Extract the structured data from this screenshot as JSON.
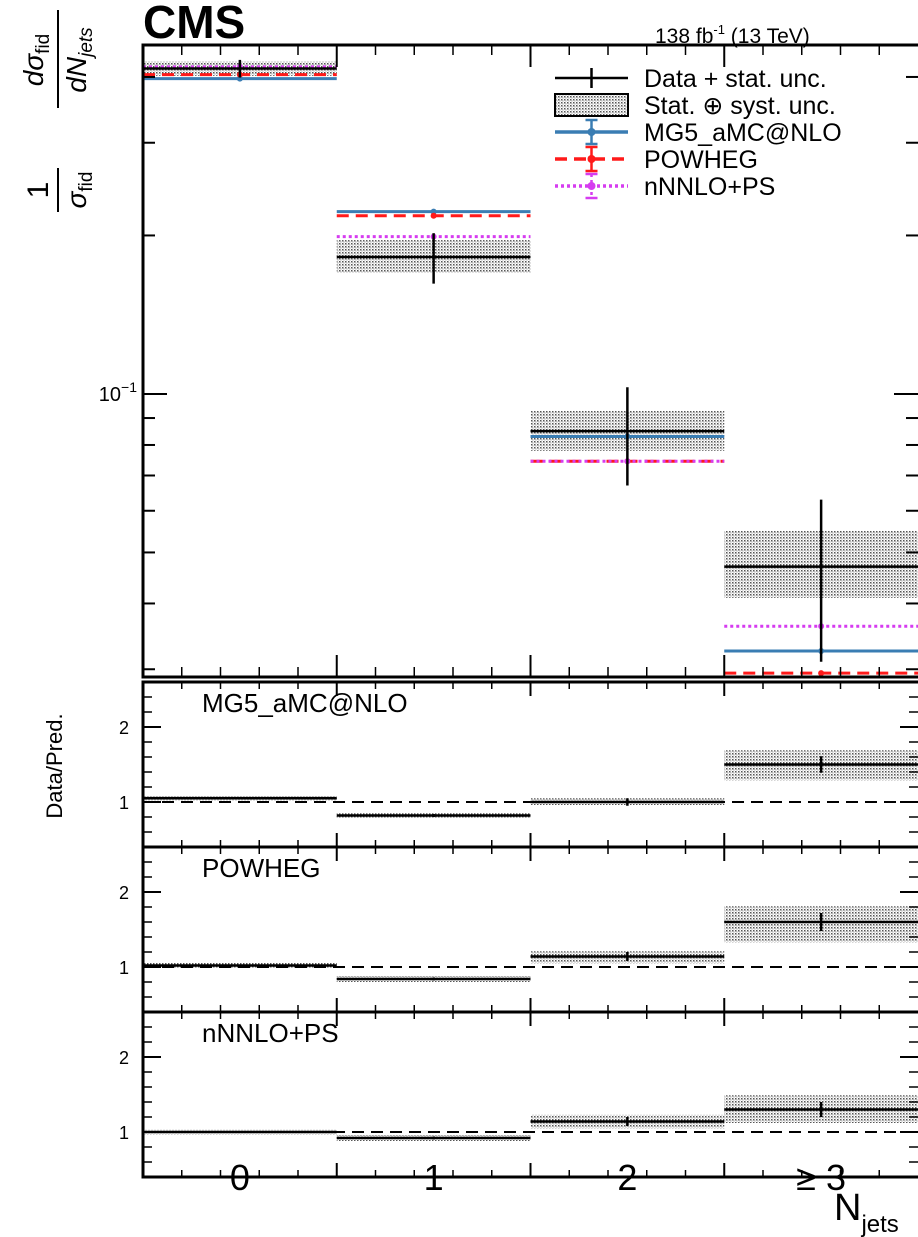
{
  "header": {
    "experiment": "CMS",
    "luminosity_main": "138 fb",
    "luminosity_sup": "-1",
    "energy": " (13 TeV)"
  },
  "legend": [
    {
      "label": "Data + stat. unc.",
      "style": "data"
    },
    {
      "label": "Stat. ⊕ syst. unc.",
      "style": "band"
    },
    {
      "label": "MG5_aMC@NLO",
      "style": "solid",
      "color": "#3a7db3"
    },
    {
      "label": "POWHEG",
      "style": "dashed",
      "color": "#ff1a1a"
    },
    {
      "label": "nNNLO+PS",
      "style": "dotted",
      "color": "#d63cf0"
    }
  ],
  "axis_labels": {
    "x_main": "N",
    "x_sub": "jets",
    "ratio_y": "Data/Pred."
  },
  "chart_data": {
    "type": "line",
    "categories": [
      "0",
      "1",
      "2",
      "≥ 3"
    ],
    "y_scale": "log",
    "ylim": [
      0.029,
      0.46
    ],
    "y_tick_label_base": "10",
    "y_tick_label_exp": "−1",
    "data": {
      "values": [
        0.415,
        0.182,
        0.085,
        0.047
      ],
      "stat_unc": [
        0.004,
        0.005,
        0.0045,
        0.004
      ],
      "total_unc_low": [
        0.402,
        0.17,
        0.078,
        0.041
      ],
      "total_unc_high": [
        0.428,
        0.196,
        0.093,
        0.055
      ]
    },
    "series": [
      {
        "name": "MG5_aMC@NLO",
        "color": "#3a7db3",
        "values": [
          0.397,
          0.222,
          0.083,
          0.0325
        ]
      },
      {
        "name": "POWHEG",
        "color": "#ff1a1a",
        "values": [
          0.404,
          0.218,
          0.0745,
          0.0295
        ]
      },
      {
        "name": "nNNLO+PS",
        "color": "#d63cf0",
        "values": [
          0.418,
          0.199,
          0.0745,
          0.0362
        ]
      }
    ],
    "ratio_panels": [
      {
        "label": "MG5_aMC@NLO",
        "ylim": [
          0.4,
          2.6
        ],
        "yticks": [
          "1",
          "2"
        ],
        "values": [
          1.05,
          0.82,
          1.0,
          1.5
        ],
        "unc_low": [
          1.02,
          0.79,
          0.96,
          1.29
        ],
        "unc_high": [
          1.08,
          0.85,
          1.05,
          1.69
        ],
        "stat_unc": [
          0.01,
          0.02,
          0.05,
          0.11
        ]
      },
      {
        "label": "POWHEG",
        "ylim": [
          0.4,
          2.6
        ],
        "yticks": [
          "1",
          "2"
        ],
        "values": [
          1.02,
          0.84,
          1.14,
          1.6
        ],
        "unc_low": [
          0.99,
          0.8,
          1.05,
          1.33
        ],
        "unc_high": [
          1.06,
          0.88,
          1.21,
          1.81
        ],
        "stat_unc": [
          0.01,
          0.02,
          0.06,
          0.12
        ]
      },
      {
        "label": "nNNLO+PS",
        "ylim": [
          0.4,
          2.6
        ],
        "yticks": [
          "1",
          "2"
        ],
        "values": [
          1.0,
          0.92,
          1.14,
          1.3
        ],
        "unc_low": [
          0.97,
          0.88,
          1.05,
          1.12
        ],
        "unc_high": [
          1.03,
          0.96,
          1.23,
          1.49
        ],
        "stat_unc": [
          0.01,
          0.02,
          0.06,
          0.1
        ]
      }
    ]
  }
}
